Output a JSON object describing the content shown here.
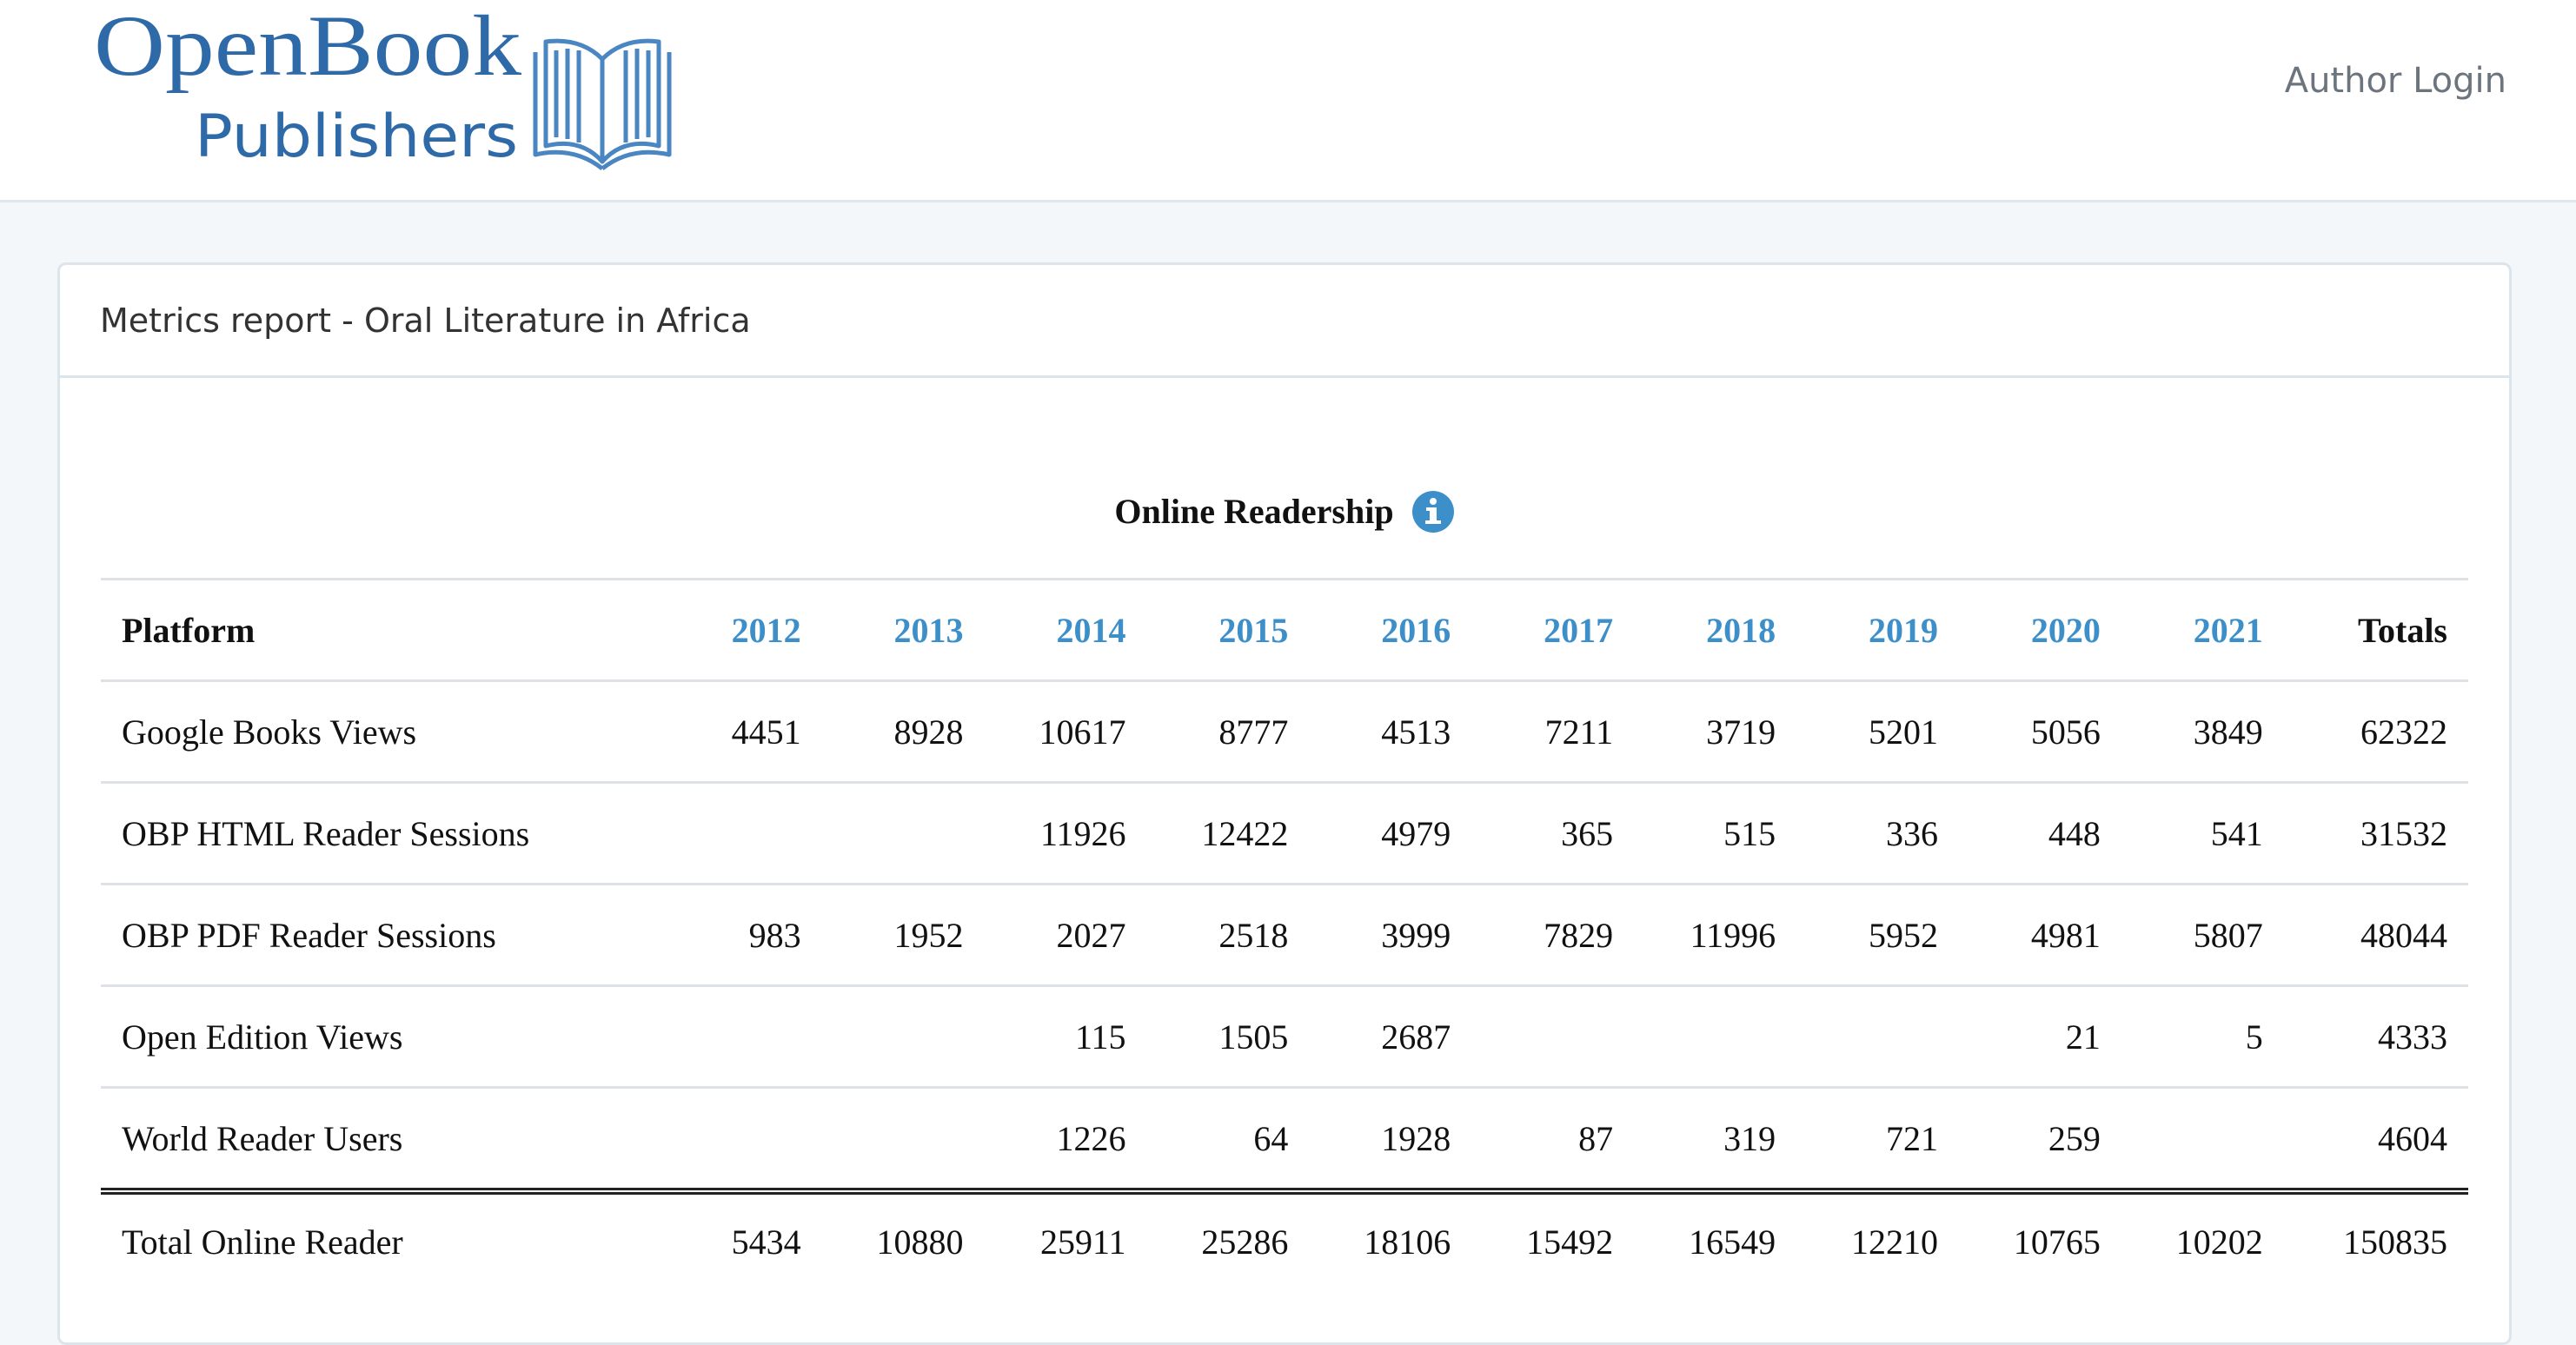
{
  "header": {
    "logo_line1": "OpenBook",
    "logo_line2": "Publishers",
    "author_login": "Author Login"
  },
  "card": {
    "title": "Metrics report - Oral Literature in Africa"
  },
  "section": {
    "title": "Online Readership",
    "info_icon": "info-circle-icon"
  },
  "table": {
    "header": {
      "platform": "Platform",
      "years": [
        "2012",
        "2013",
        "2014",
        "2015",
        "2016",
        "2017",
        "2018",
        "2019",
        "2020",
        "2021"
      ],
      "totals": "Totals"
    },
    "rows": [
      {
        "platform": "Google Books Views",
        "values": [
          "4451",
          "8928",
          "10617",
          "8777",
          "4513",
          "7211",
          "3719",
          "5201",
          "5056",
          "3849"
        ],
        "total": "62322"
      },
      {
        "platform": "OBP HTML Reader Sessions",
        "values": [
          "",
          "",
          "11926",
          "12422",
          "4979",
          "365",
          "515",
          "336",
          "448",
          "541"
        ],
        "total": "31532"
      },
      {
        "platform": "OBP PDF Reader Sessions",
        "values": [
          "983",
          "1952",
          "2027",
          "2518",
          "3999",
          "7829",
          "11996",
          "5952",
          "4981",
          "5807"
        ],
        "total": "48044"
      },
      {
        "platform": "Open Edition Views",
        "values": [
          "",
          "",
          "115",
          "1505",
          "2687",
          "",
          "",
          "",
          "21",
          "5"
        ],
        "total": "4333"
      },
      {
        "platform": "World Reader Users",
        "values": [
          "",
          "",
          "1226",
          "64",
          "1928",
          "87",
          "319",
          "721",
          "259",
          ""
        ],
        "total": "4604"
      }
    ],
    "total_row": {
      "platform": "Total Online Reader",
      "values": [
        "5434",
        "10880",
        "25911",
        "25286",
        "18106",
        "15492",
        "16549",
        "12210",
        "10765",
        "10202"
      ],
      "total": "150835"
    }
  },
  "colors": {
    "brand_blue": "#2e6da4",
    "year_link": "#3d8fc9",
    "info_icon": "#3d8fc9"
  }
}
